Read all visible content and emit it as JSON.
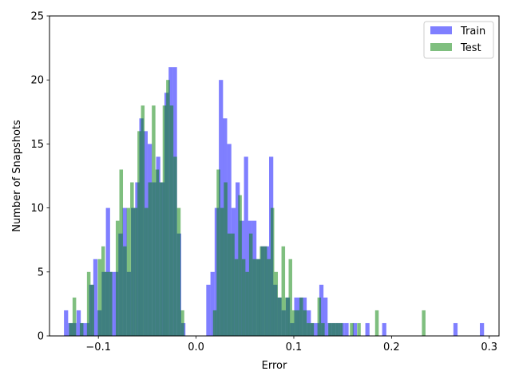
{
  "chart_data": {
    "type": "bar",
    "subtype": "overlaid-histogram",
    "xlabel": "Error",
    "ylabel": "Number of Snapshots",
    "xlim": [
      -0.15,
      0.31
    ],
    "ylim": [
      0,
      25
    ],
    "xticks": [
      -0.1,
      0.0,
      0.1,
      0.2,
      0.3
    ],
    "xtick_labels": [
      "−0.1",
      "0.0",
      "0.1",
      "0.2",
      "0.3"
    ],
    "yticks": [
      0,
      5,
      10,
      15,
      20,
      25
    ],
    "ytick_labels": [
      "0",
      "5",
      "10",
      "15",
      "20",
      "25"
    ],
    "grid": false,
    "legend_position": "top-right",
    "bin_width_train": 0.00428,
    "bin_width_test": 0.00368,
    "series": [
      {
        "name": "Train",
        "color": "#0000ff",
        "opacity": 0.5,
        "bins": [
          [
            -0.1352,
            2
          ],
          [
            -0.1309,
            1
          ],
          [
            -0.1266,
            1
          ],
          [
            -0.1223,
            2
          ],
          [
            -0.118,
            1
          ],
          [
            -0.1137,
            1
          ],
          [
            -0.1095,
            4
          ],
          [
            -0.1052,
            6
          ],
          [
            -0.1009,
            2
          ],
          [
            -0.0966,
            5
          ],
          [
            -0.0923,
            10
          ],
          [
            -0.088,
            5
          ],
          [
            -0.0838,
            5
          ],
          [
            -0.0795,
            8
          ],
          [
            -0.0752,
            10
          ],
          [
            -0.0709,
            5
          ],
          [
            -0.0666,
            10
          ],
          [
            -0.0623,
            12
          ],
          [
            -0.0581,
            17
          ],
          [
            -0.0538,
            16
          ],
          [
            -0.0495,
            15
          ],
          [
            -0.0452,
            12
          ],
          [
            -0.0409,
            14
          ],
          [
            -0.0366,
            12
          ],
          [
            -0.0324,
            19
          ],
          [
            -0.0281,
            21
          ],
          [
            -0.0238,
            21
          ],
          [
            -0.0195,
            8
          ],
          [
            -0.0152,
            1
          ],
          [
            0.0104,
            4
          ],
          [
            0.0147,
            5
          ],
          [
            0.019,
            10
          ],
          [
            0.0233,
            20
          ],
          [
            0.0275,
            17
          ],
          [
            0.0318,
            15
          ],
          [
            0.0361,
            10
          ],
          [
            0.0404,
            12
          ],
          [
            0.0447,
            9
          ],
          [
            0.049,
            14
          ],
          [
            0.0532,
            9
          ],
          [
            0.0575,
            9
          ],
          [
            0.0618,
            6
          ],
          [
            0.0661,
            7
          ],
          [
            0.0704,
            7
          ],
          [
            0.0747,
            14
          ],
          [
            0.0789,
            4
          ],
          [
            0.0832,
            3
          ],
          [
            0.0875,
            2
          ],
          [
            0.0918,
            3
          ],
          [
            0.0961,
            1
          ],
          [
            0.1004,
            3
          ],
          [
            0.1046,
            3
          ],
          [
            0.1089,
            3
          ],
          [
            0.1132,
            2
          ],
          [
            0.1175,
            1
          ],
          [
            0.1218,
            1
          ],
          [
            0.1261,
            4
          ],
          [
            0.1303,
            3
          ],
          [
            0.1346,
            1
          ],
          [
            0.1389,
            1
          ],
          [
            0.1432,
            1
          ],
          [
            0.1475,
            1
          ],
          [
            0.1518,
            1
          ],
          [
            0.1603,
            1
          ],
          [
            0.1732,
            1
          ],
          [
            0.1904,
            1
          ],
          [
            0.2633,
            1
          ],
          [
            0.2904,
            1
          ]
        ]
      },
      {
        "name": "Test",
        "color": "#008000",
        "opacity": 0.5,
        "bins": [
          [
            -0.13,
            1
          ],
          [
            -0.1264,
            3
          ],
          [
            -0.119,
            1
          ],
          [
            -0.1117,
            5
          ],
          [
            -0.108,
            4
          ],
          [
            -0.1006,
            6
          ],
          [
            -0.0969,
            7
          ],
          [
            -0.0932,
            5
          ],
          [
            -0.0895,
            5
          ],
          [
            -0.0822,
            9
          ],
          [
            -0.0785,
            13
          ],
          [
            -0.0748,
            7
          ],
          [
            -0.0711,
            10
          ],
          [
            -0.0674,
            12
          ],
          [
            -0.0637,
            10
          ],
          [
            -0.06,
            16
          ],
          [
            -0.0564,
            18
          ],
          [
            -0.0527,
            10
          ],
          [
            -0.049,
            12
          ],
          [
            -0.0453,
            18
          ],
          [
            -0.0416,
            13
          ],
          [
            -0.0379,
            12
          ],
          [
            -0.0342,
            18
          ],
          [
            -0.0306,
            20
          ],
          [
            -0.0269,
            18
          ],
          [
            -0.0232,
            14
          ],
          [
            -0.0195,
            10
          ],
          [
            -0.0158,
            2
          ],
          [
            0.0173,
            2
          ],
          [
            0.021,
            13
          ],
          [
            0.0247,
            10
          ],
          [
            0.0284,
            12
          ],
          [
            0.0321,
            8
          ],
          [
            0.0357,
            8
          ],
          [
            0.0394,
            6
          ],
          [
            0.0431,
            11
          ],
          [
            0.0468,
            6
          ],
          [
            0.0505,
            5
          ],
          [
            0.0542,
            8
          ],
          [
            0.0579,
            6
          ],
          [
            0.0616,
            6
          ],
          [
            0.0652,
            7
          ],
          [
            0.0689,
            7
          ],
          [
            0.0726,
            6
          ],
          [
            0.0763,
            10
          ],
          [
            0.08,
            5
          ],
          [
            0.0837,
            3
          ],
          [
            0.0874,
            7
          ],
          [
            0.0911,
            3
          ],
          [
            0.0947,
            6
          ],
          [
            0.0984,
            2
          ],
          [
            0.1021,
            2
          ],
          [
            0.1058,
            3
          ],
          [
            0.1095,
            2
          ],
          [
            0.1132,
            1
          ],
          [
            0.1169,
            1
          ],
          [
            0.1242,
            3
          ],
          [
            0.1279,
            1
          ],
          [
            0.1353,
            1
          ],
          [
            0.139,
            1
          ],
          [
            0.1427,
            1
          ],
          [
            0.1464,
            1
          ],
          [
            0.1574,
            1
          ],
          [
            0.1648,
            1
          ],
          [
            0.1832,
            2
          ],
          [
            0.2311,
            2
          ]
        ]
      }
    ]
  }
}
